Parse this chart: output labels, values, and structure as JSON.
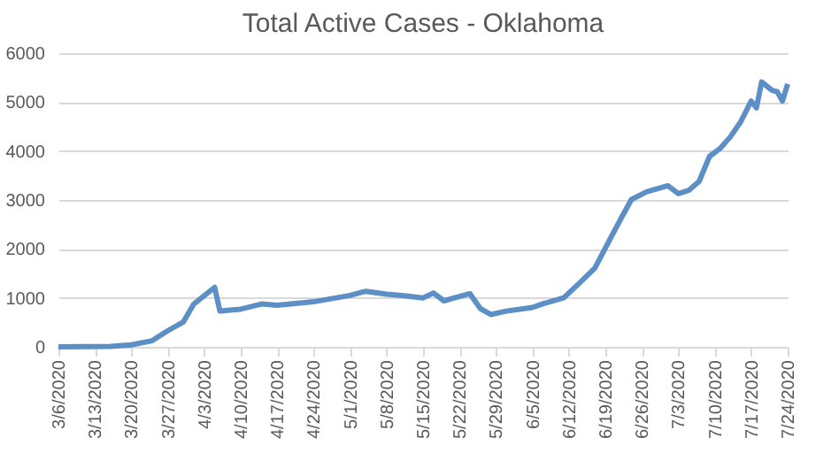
{
  "chart_data": {
    "type": "line",
    "title": "Total Active Cases - Oklahoma",
    "x": [
      "2020-03-06",
      "2020-03-16",
      "2020-03-20",
      "2020-03-24",
      "2020-03-27",
      "2020-03-30",
      "2020-04-01",
      "2020-04-05",
      "2020-04-06",
      "2020-04-10",
      "2020-04-14",
      "2020-04-17",
      "2020-04-24",
      "2020-05-01",
      "2020-05-04",
      "2020-05-08",
      "2020-05-11",
      "2020-05-15",
      "2020-05-17",
      "2020-05-19",
      "2020-05-24",
      "2020-05-26",
      "2020-05-28",
      "2020-05-31",
      "2020-06-05",
      "2020-06-07",
      "2020-06-11",
      "2020-06-14",
      "2020-06-17",
      "2020-06-20",
      "2020-06-22",
      "2020-06-24",
      "2020-06-27",
      "2020-07-01",
      "2020-07-03",
      "2020-07-05",
      "2020-07-07",
      "2020-07-09",
      "2020-07-11",
      "2020-07-13",
      "2020-07-15",
      "2020-07-17",
      "2020-07-18",
      "2020-07-19",
      "2020-07-21",
      "2020-07-22",
      "2020-07-23",
      "2020-07-24"
    ],
    "series": [
      {
        "color": "#5b8fc5",
        "values": [
          0,
          10,
          40,
          125,
          330,
          510,
          875,
          1215,
          730,
          770,
          875,
          850,
          920,
          1050,
          1135,
          1075,
          1050,
          1000,
          1100,
          940,
          1085,
          780,
          660,
          730,
          805,
          880,
          1000,
          1300,
          1610,
          2220,
          2620,
          3010,
          3170,
          3290,
          3130,
          3195,
          3380,
          3890,
          4050,
          4290,
          4600,
          5020,
          4880,
          5410,
          5240,
          5210,
          5020,
          5370
        ]
      }
    ],
    "xlim": [
      "2020-03-06",
      "2020-07-24"
    ],
    "xticks": [
      {
        "value": "2020-03-06",
        "label": "3/6/2020"
      },
      {
        "value": "2020-03-13",
        "label": "3/13/2020"
      },
      {
        "value": "2020-03-20",
        "label": "3/20/2020"
      },
      {
        "value": "2020-03-27",
        "label": "3/27/2020"
      },
      {
        "value": "2020-04-03",
        "label": "4/3/2020"
      },
      {
        "value": "2020-04-10",
        "label": "4/10/2020"
      },
      {
        "value": "2020-04-17",
        "label": "4/17/2020"
      },
      {
        "value": "2020-04-24",
        "label": "4/24/2020"
      },
      {
        "value": "2020-05-01",
        "label": "5/1/2020"
      },
      {
        "value": "2020-05-08",
        "label": "5/8/2020"
      },
      {
        "value": "2020-05-15",
        "label": "5/15/2020"
      },
      {
        "value": "2020-05-22",
        "label": "5/22/2020"
      },
      {
        "value": "2020-05-29",
        "label": "5/29/2020"
      },
      {
        "value": "2020-06-05",
        "label": "6/5/2020"
      },
      {
        "value": "2020-06-12",
        "label": "6/12/2020"
      },
      {
        "value": "2020-06-19",
        "label": "6/19/2020"
      },
      {
        "value": "2020-06-26",
        "label": "6/26/2020"
      },
      {
        "value": "2020-07-03",
        "label": "7/3/2020"
      },
      {
        "value": "2020-07-10",
        "label": "7/10/2020"
      },
      {
        "value": "2020-07-17",
        "label": "7/17/2020"
      },
      {
        "value": "2020-07-24",
        "label": "7/24/2020"
      }
    ],
    "ylim": [
      0,
      6000
    ],
    "yticks": [
      0,
      1000,
      2000,
      3000,
      4000,
      5000,
      6000
    ],
    "grid": "y",
    "marker": "none",
    "line_style": "solid"
  }
}
